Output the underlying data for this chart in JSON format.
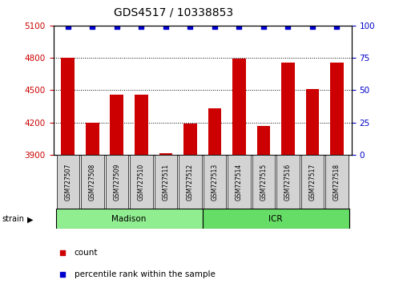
{
  "title": "GDS4517 / 10338853",
  "samples": [
    "GSM727507",
    "GSM727508",
    "GSM727509",
    "GSM727510",
    "GSM727511",
    "GSM727512",
    "GSM727513",
    "GSM727514",
    "GSM727515",
    "GSM727516",
    "GSM727517",
    "GSM727518"
  ],
  "counts": [
    4800,
    4200,
    4455,
    4455,
    3912,
    4188,
    4335,
    4790,
    4170,
    4758,
    4510,
    4758
  ],
  "bar_color": "#cc0000",
  "dot_color": "#0000cc",
  "ylim_left": [
    3900,
    5100
  ],
  "ylim_right": [
    0,
    100
  ],
  "yticks_left": [
    3900,
    4200,
    4500,
    4800,
    5100
  ],
  "yticks_right": [
    0,
    25,
    50,
    75,
    100
  ],
  "gridlines": [
    4800,
    4500,
    4200
  ],
  "madison_color": "#90EE90",
  "icr_color": "#66DD66",
  "left_tick_color": "#cc0000",
  "right_tick_color": "#0000cc"
}
